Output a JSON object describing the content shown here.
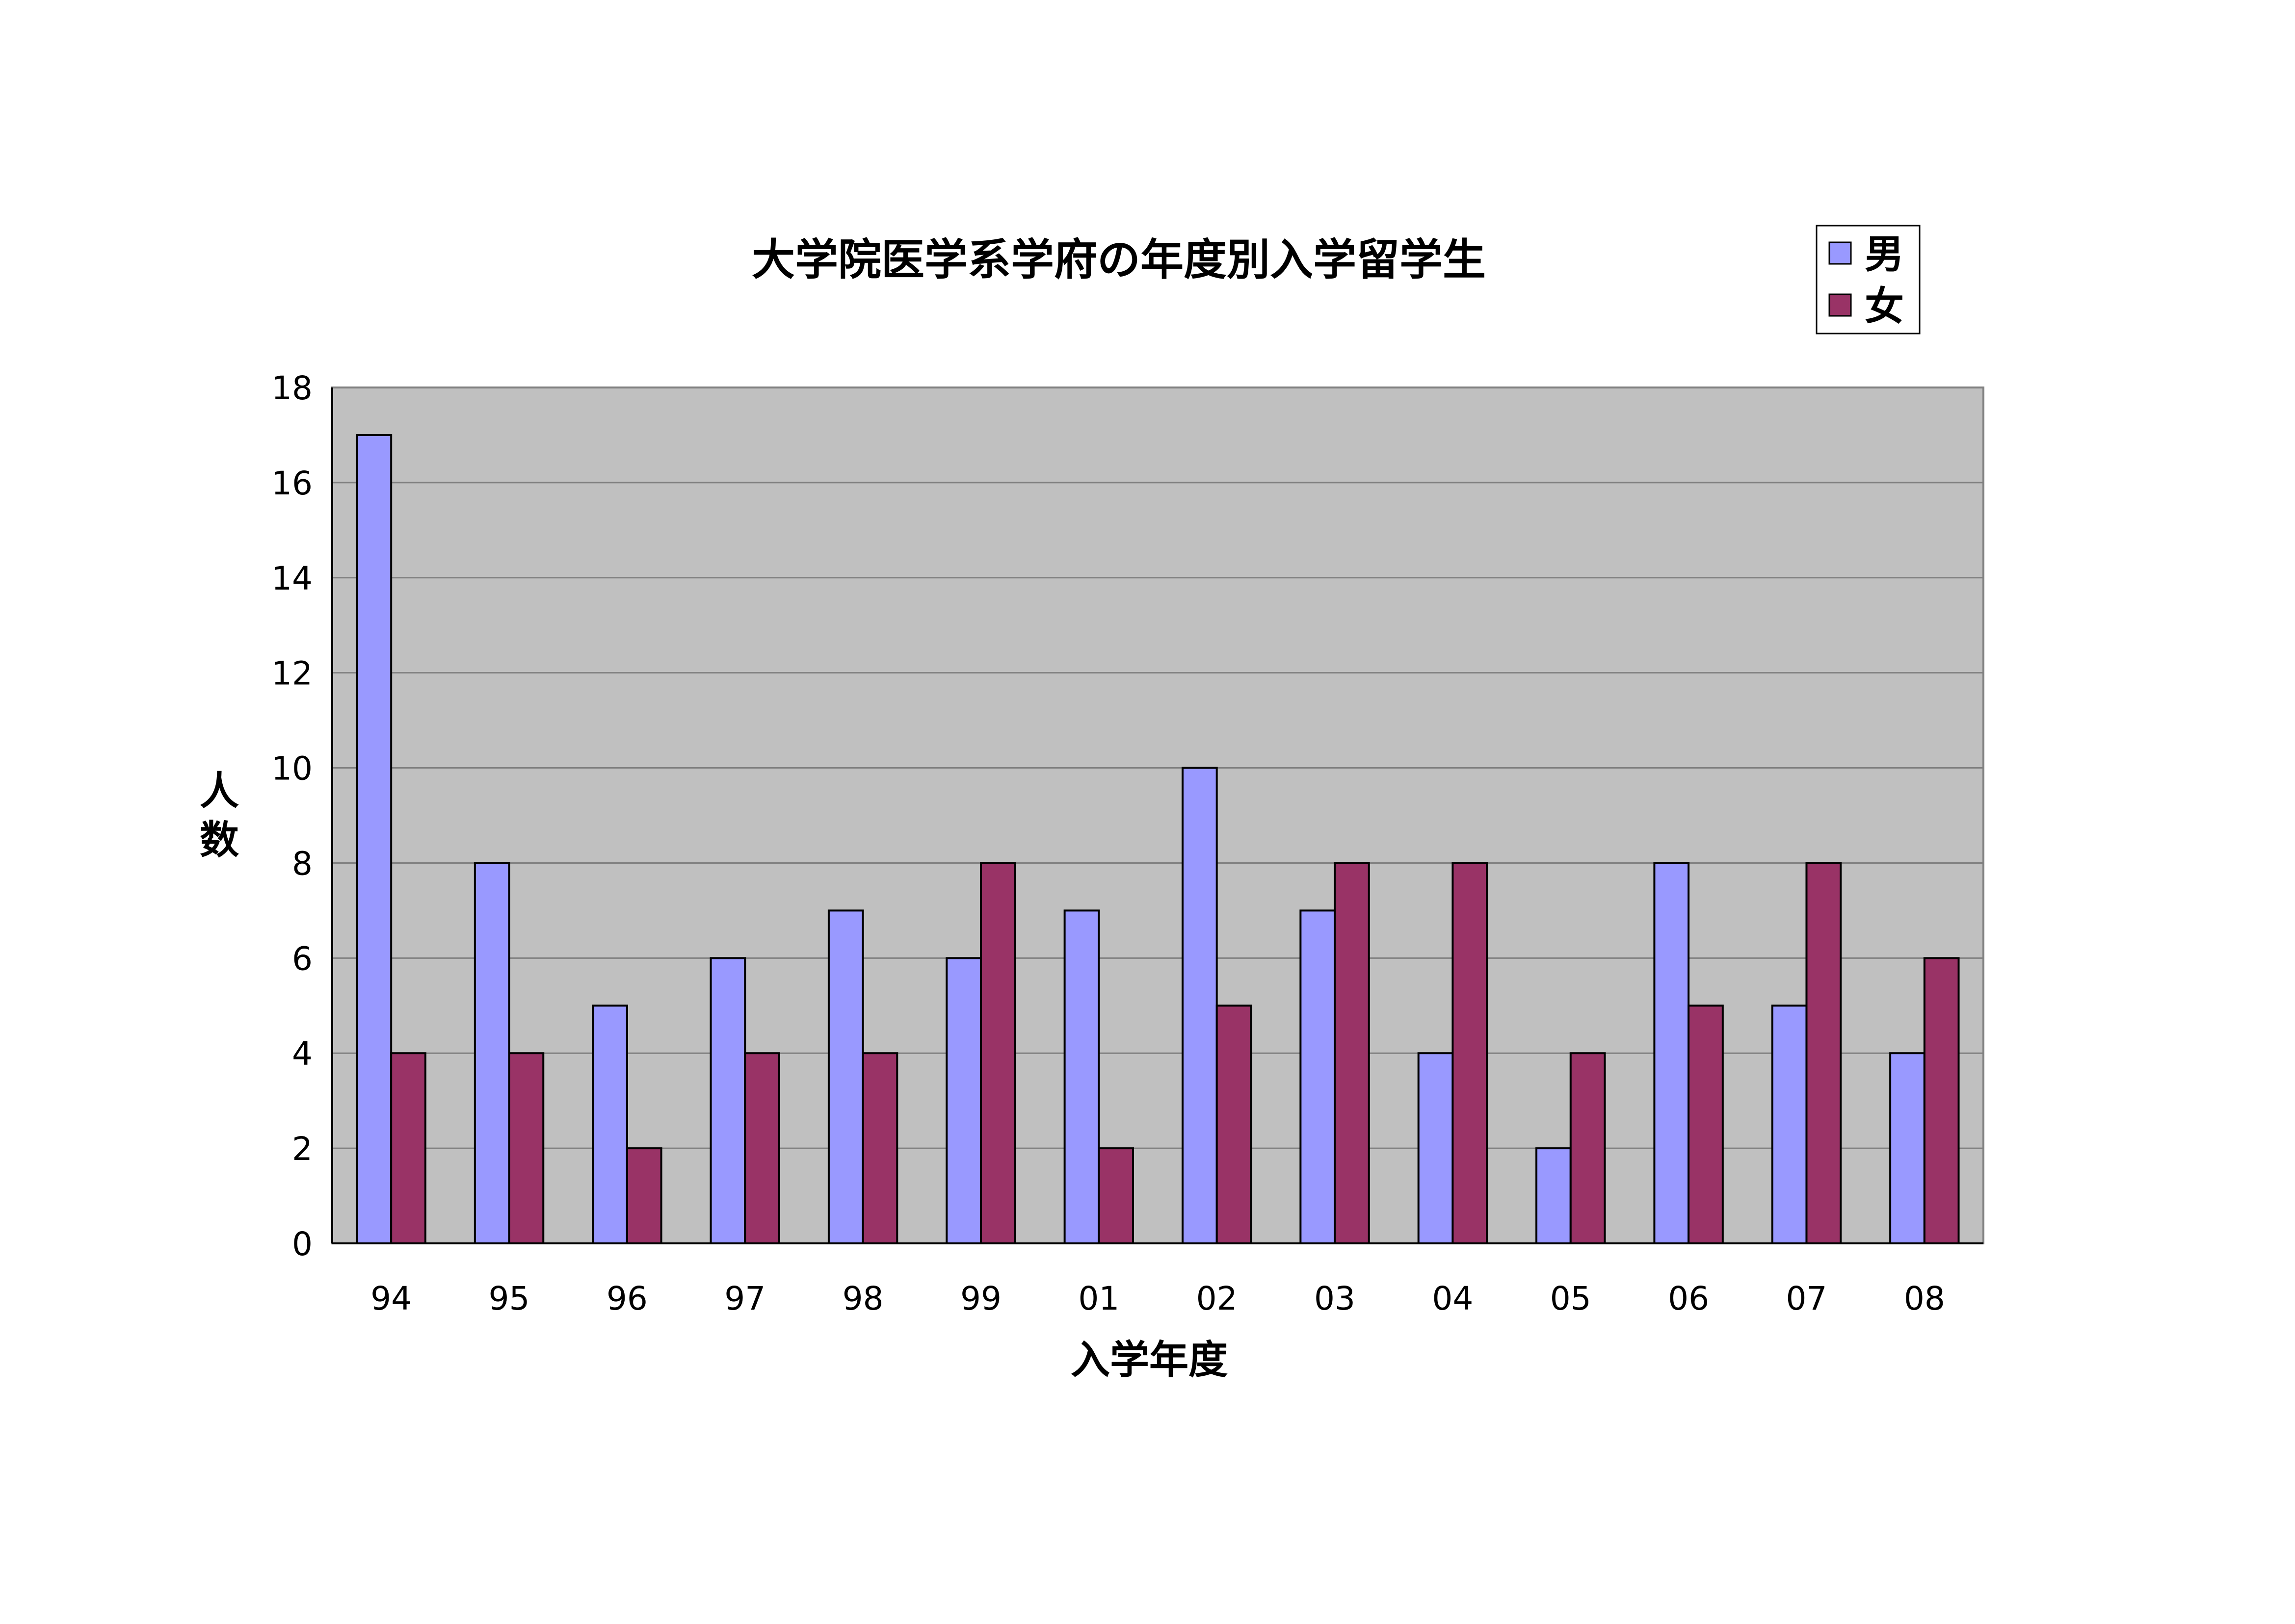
{
  "chart_data": {
    "type": "bar",
    "title": "大学院医学系学府の年度別入学留学生",
    "xlabel": "入学年度",
    "ylabel": "人数",
    "ylim": [
      0,
      18
    ],
    "yticks": [
      0,
      2,
      4,
      6,
      8,
      10,
      12,
      14,
      16,
      18
    ],
    "grid": true,
    "legend_position": "top-right",
    "plot_background": "#c0c0c0",
    "categories": [
      "94",
      "95",
      "96",
      "97",
      "98",
      "99",
      "01",
      "02",
      "03",
      "04",
      "05",
      "06",
      "07",
      "08"
    ],
    "series": [
      {
        "name": "男",
        "color": "#9999ff",
        "values": [
          17,
          8,
          5,
          6,
          7,
          6,
          7,
          10,
          7,
          4,
          2,
          8,
          5,
          4
        ]
      },
      {
        "name": "女",
        "color": "#993366",
        "values": [
          4,
          4,
          2,
          4,
          4,
          8,
          2,
          5,
          8,
          8,
          4,
          5,
          8,
          6
        ]
      }
    ]
  }
}
